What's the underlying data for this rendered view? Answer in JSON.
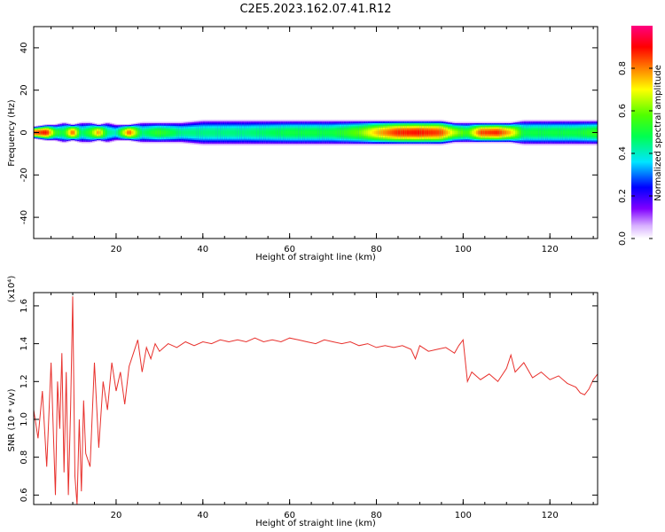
{
  "title": "C2E5.2023.162.07.41.R12",
  "colors": {
    "snr_line": "#e8302c",
    "axis": "#000000",
    "background": "#ffffff"
  },
  "chart_data": [
    {
      "type": "heatmap",
      "xlabel": "Height of straight line (km)",
      "ylabel": "Frequency (Hz)",
      "xlim": [
        1,
        131
      ],
      "ylim": [
        -50,
        50
      ],
      "xticks": [
        20,
        40,
        60,
        80,
        100,
        120
      ],
      "yticks": [
        -40,
        -20,
        0,
        20,
        40
      ],
      "colorbar": {
        "label": "Normalized spectral amplitude",
        "range": [
          0,
          1
        ],
        "ticks": [
          0.0,
          0.2,
          0.4,
          0.6,
          0.8
        ]
      },
      "band": {
        "center_hz": 0,
        "profile": [
          {
            "x": 1,
            "width_hz": 3,
            "peak": 0.85
          },
          {
            "x": 4,
            "width_hz": 4,
            "peak": 0.9
          },
          {
            "x": 6,
            "width_hz": 4,
            "peak": 0.55
          },
          {
            "x": 8,
            "width_hz": 5,
            "peak": 0.5
          },
          {
            "x": 10,
            "width_hz": 4,
            "peak": 0.85
          },
          {
            "x": 12,
            "width_hz": 5,
            "peak": 0.45
          },
          {
            "x": 14,
            "width_hz": 5,
            "peak": 0.55
          },
          {
            "x": 16,
            "width_hz": 4,
            "peak": 0.8
          },
          {
            "x": 18,
            "width_hz": 5,
            "peak": 0.45
          },
          {
            "x": 20,
            "width_hz": 4,
            "peak": 0.4
          },
          {
            "x": 23,
            "width_hz": 4,
            "peak": 0.85
          },
          {
            "x": 26,
            "width_hz": 5,
            "peak": 0.45
          },
          {
            "x": 30,
            "width_hz": 5,
            "peak": 0.55
          },
          {
            "x": 35,
            "width_hz": 5,
            "peak": 0.45
          },
          {
            "x": 40,
            "width_hz": 6,
            "peak": 0.45
          },
          {
            "x": 50,
            "width_hz": 6,
            "peak": 0.45
          },
          {
            "x": 60,
            "width_hz": 6,
            "peak": 0.5
          },
          {
            "x": 70,
            "width_hz": 6,
            "peak": 0.5
          },
          {
            "x": 76,
            "width_hz": 6,
            "peak": 0.6
          },
          {
            "x": 80,
            "width_hz": 6,
            "peak": 0.75
          },
          {
            "x": 85,
            "width_hz": 6,
            "peak": 0.88
          },
          {
            "x": 90,
            "width_hz": 6,
            "peak": 0.9
          },
          {
            "x": 95,
            "width_hz": 6,
            "peak": 0.85
          },
          {
            "x": 98,
            "width_hz": 5,
            "peak": 0.65
          },
          {
            "x": 101,
            "width_hz": 5,
            "peak": 0.55
          },
          {
            "x": 104,
            "width_hz": 5,
            "peak": 0.85
          },
          {
            "x": 108,
            "width_hz": 5,
            "peak": 0.88
          },
          {
            "x": 111,
            "width_hz": 5,
            "peak": 0.75
          },
          {
            "x": 114,
            "width_hz": 6,
            "peak": 0.5
          },
          {
            "x": 120,
            "width_hz": 6,
            "peak": 0.5
          },
          {
            "x": 126,
            "width_hz": 6,
            "peak": 0.5
          },
          {
            "x": 131,
            "width_hz": 6,
            "peak": 0.55
          }
        ]
      }
    },
    {
      "type": "line",
      "xlabel": "Height of straight line (km)",
      "ylabel": "SNR (10 * v/v)",
      "y_multiplier": "(x10⁴)",
      "xlim": [
        1,
        131
      ],
      "ylim": [
        0.55,
        1.67
      ],
      "xticks": [
        20,
        40,
        60,
        80,
        100,
        120
      ],
      "yticks": [
        0.6,
        0.8,
        1.0,
        1.2,
        1.4,
        1.6
      ],
      "ytick_labels": [
        "0.6",
        "0.8",
        "1.0",
        "1.2",
        "1.4",
        "1.6"
      ],
      "series": [
        {
          "x": [
            1,
            2,
            3,
            4,
            5,
            6,
            6.5,
            7,
            7.5,
            8,
            8.5,
            9,
            9.5,
            10,
            10.5,
            11,
            11.5,
            12,
            12.5,
            13,
            14,
            15,
            16,
            17,
            18,
            19,
            20,
            21,
            22,
            23,
            24,
            25,
            26,
            27,
            28,
            29,
            30,
            32,
            34,
            36,
            38,
            40,
            42,
            44,
            46,
            48,
            50,
            52,
            54,
            56,
            58,
            60,
            62,
            64,
            66,
            68,
            70,
            72,
            74,
            76,
            78,
            80,
            82,
            84,
            86,
            88,
            89,
            90,
            92,
            94,
            96,
            98,
            99,
            100,
            101,
            102,
            104,
            106,
            108,
            110,
            111,
            112,
            114,
            116,
            118,
            120,
            122,
            124,
            126,
            127,
            128,
            129,
            130,
            131
          ],
          "values": [
            1.05,
            0.9,
            1.15,
            0.75,
            1.3,
            0.6,
            1.2,
            0.95,
            1.35,
            0.72,
            1.25,
            0.6,
            1.05,
            1.65,
            0.7,
            0.55,
            1.0,
            0.62,
            1.1,
            0.82,
            0.75,
            1.3,
            0.85,
            1.2,
            1.05,
            1.3,
            1.15,
            1.25,
            1.08,
            1.28,
            1.35,
            1.42,
            1.25,
            1.38,
            1.32,
            1.4,
            1.36,
            1.4,
            1.38,
            1.41,
            1.39,
            1.41,
            1.4,
            1.42,
            1.41,
            1.42,
            1.41,
            1.43,
            1.41,
            1.42,
            1.41,
            1.43,
            1.42,
            1.41,
            1.4,
            1.42,
            1.41,
            1.4,
            1.41,
            1.39,
            1.4,
            1.38,
            1.39,
            1.38,
            1.39,
            1.37,
            1.32,
            1.39,
            1.36,
            1.37,
            1.38,
            1.35,
            1.39,
            1.42,
            1.2,
            1.25,
            1.21,
            1.24,
            1.2,
            1.27,
            1.34,
            1.25,
            1.3,
            1.22,
            1.25,
            1.21,
            1.23,
            1.19,
            1.17,
            1.14,
            1.13,
            1.16,
            1.21,
            1.24
          ]
        }
      ]
    }
  ]
}
